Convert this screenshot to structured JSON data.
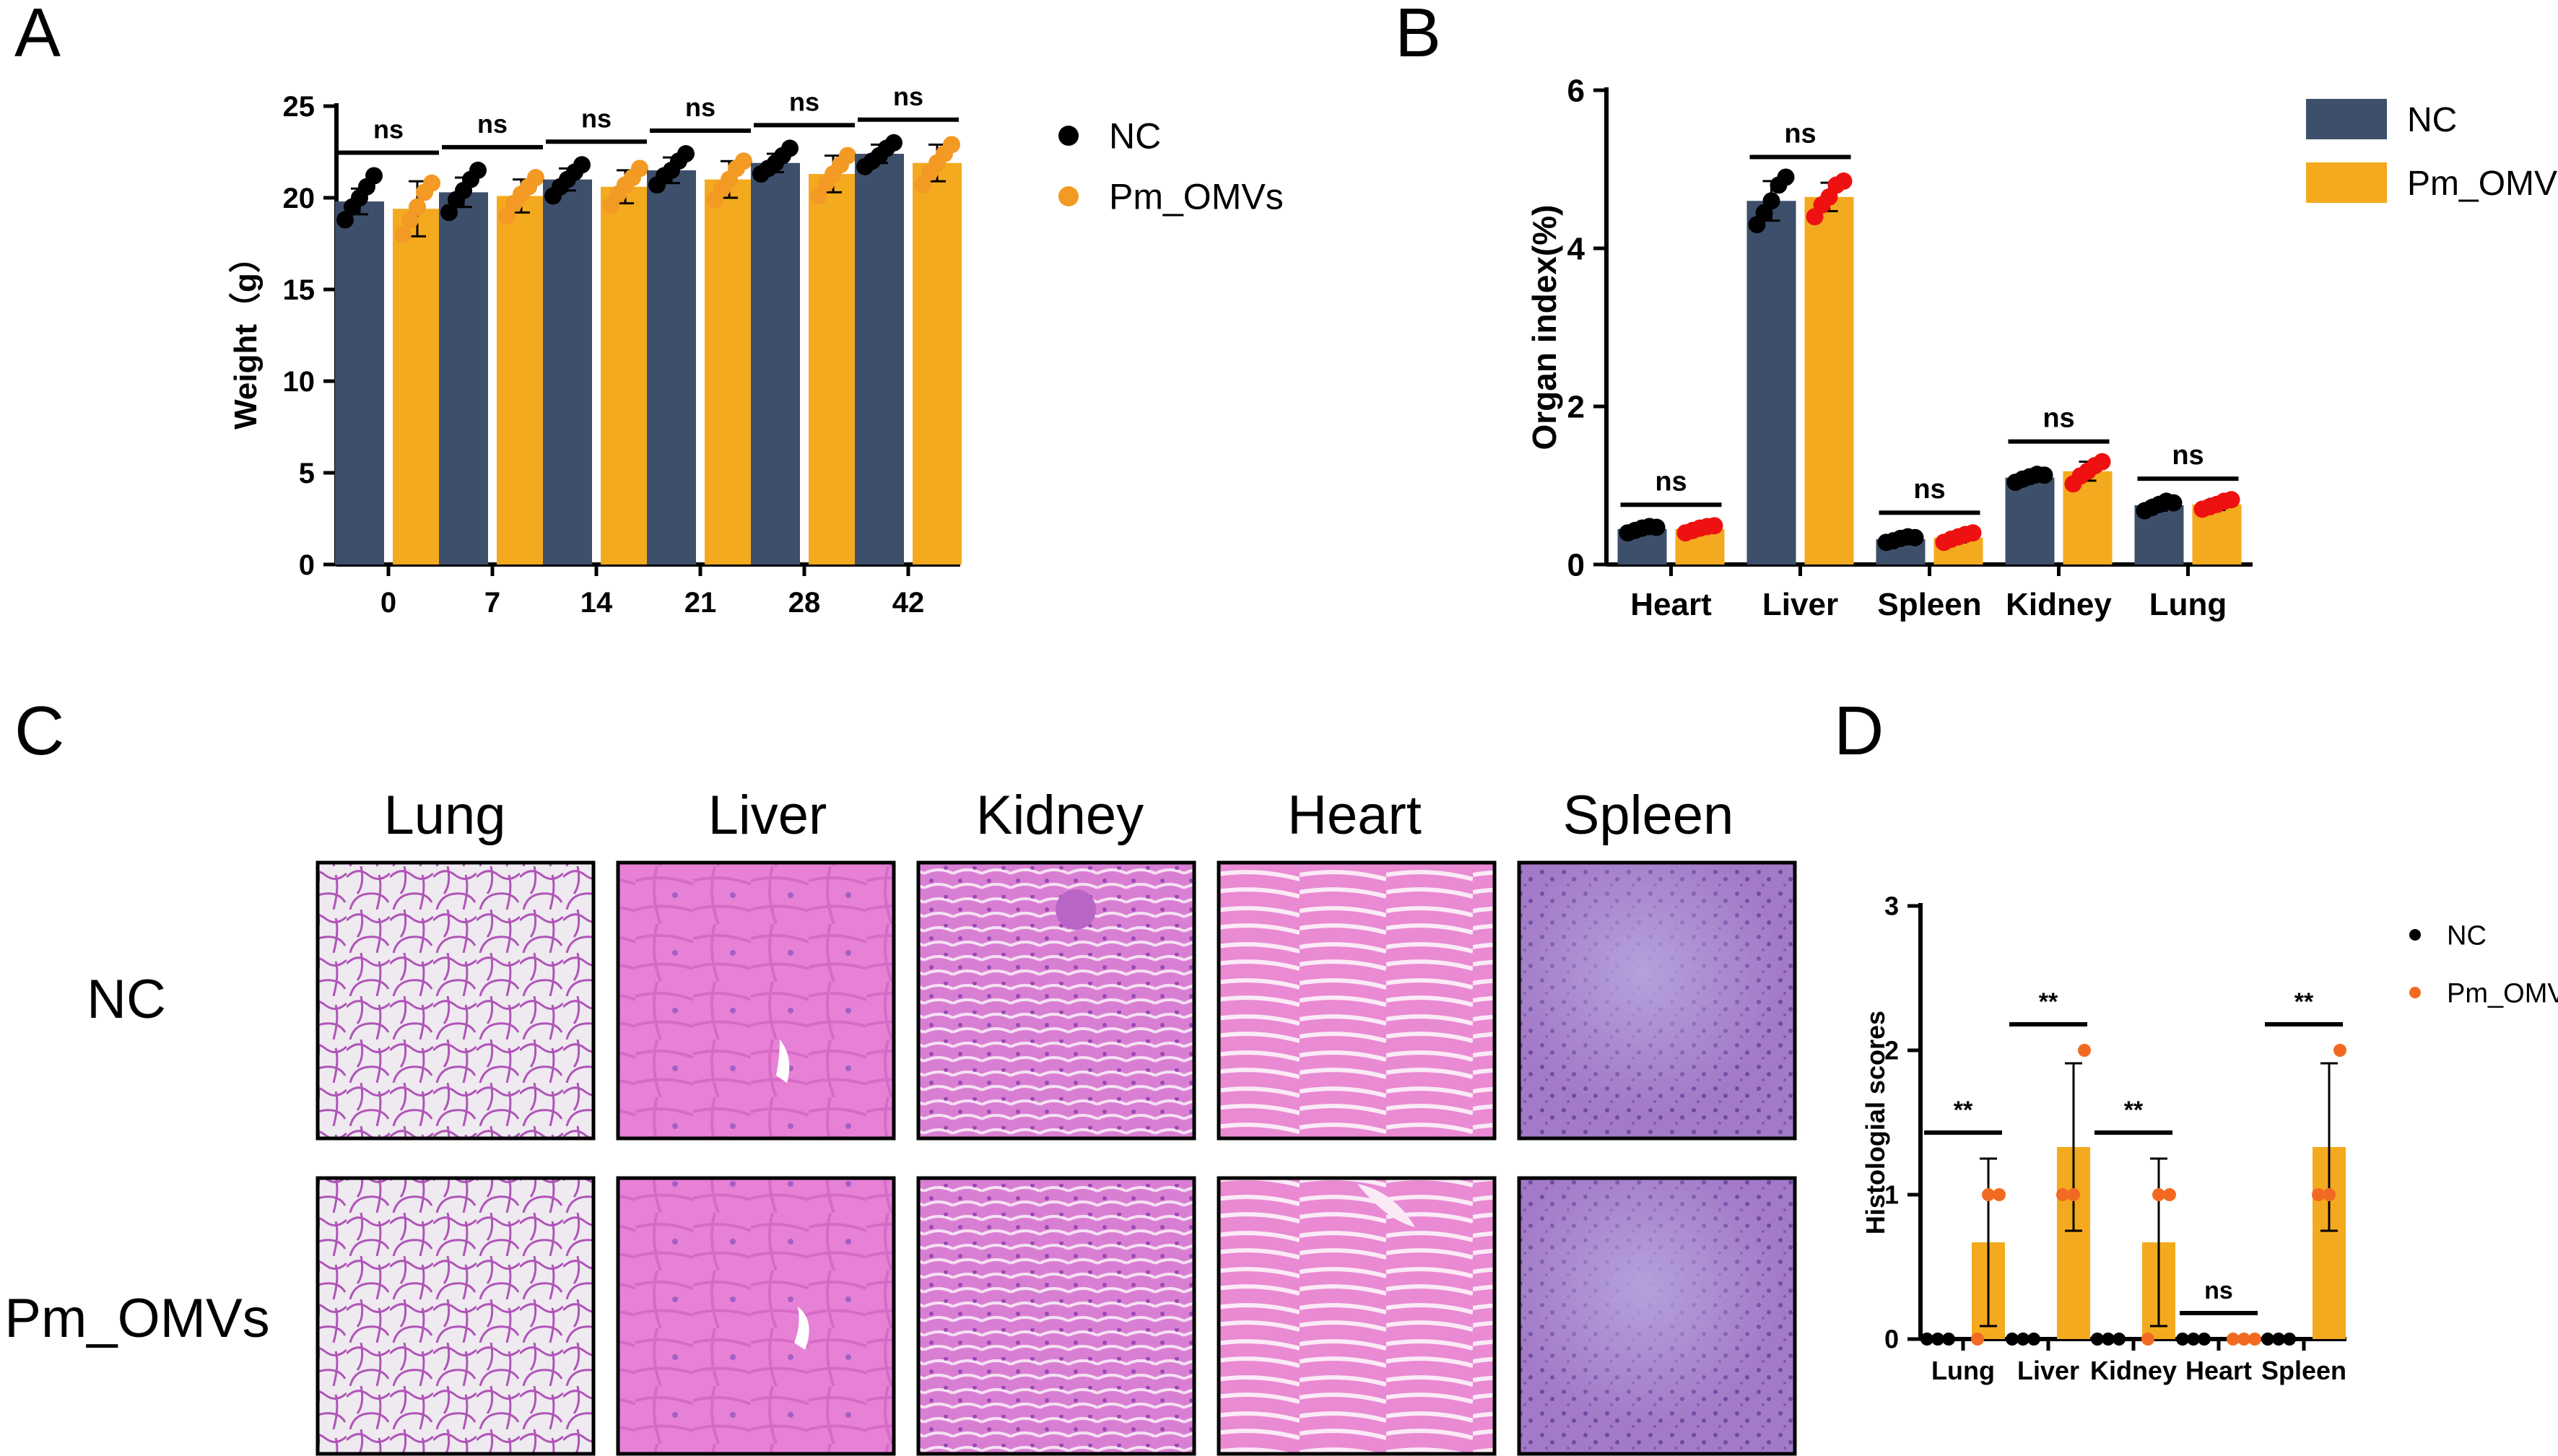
{
  "colors": {
    "nc_bar": "#3d4f6b",
    "pm_bar": "#f4aa1e",
    "nc_dot": "#000000",
    "pm_dot_a": "#f39a24",
    "pm_dot_b": "#ee1111",
    "pm_dot_d": "#f26a21",
    "legend_nc_text_a": "#243a6b",
    "legend_nc_text_d": "#243a6b"
  },
  "panels": {
    "A": {
      "letter": "A"
    },
    "B": {
      "letter": "B"
    },
    "C": {
      "letter": "C"
    },
    "D": {
      "letter": "D"
    }
  },
  "chart_data": [
    {
      "panel": "A",
      "type": "bar",
      "ylabel": "Weight（g）",
      "xlabel": "",
      "ylim": [
        0,
        25
      ],
      "yticks": [
        0,
        5,
        10,
        15,
        20,
        25
      ],
      "categories": [
        "0",
        "7",
        "14",
        "21",
        "28",
        "42"
      ],
      "legend": {
        "placement": "top-right",
        "marker": "dot"
      },
      "series": [
        {
          "name": "NC",
          "values": [
            19.8,
            20.3,
            21.0,
            21.5,
            21.9,
            22.4
          ],
          "errors": [
            0.7,
            0.8,
            0.6,
            0.7,
            0.5,
            0.5
          ],
          "points": [
            [
              18.8,
              19.5,
              20.0,
              20.6,
              21.2
            ],
            [
              19.2,
              19.9,
              20.4,
              21.0,
              21.5
            ],
            [
              20.1,
              20.6,
              21.0,
              21.4,
              21.8
            ],
            [
              20.7,
              21.2,
              21.5,
              22.0,
              22.4
            ],
            [
              21.3,
              21.6,
              21.9,
              22.3,
              22.7
            ],
            [
              21.7,
              22.0,
              22.3,
              22.7,
              23.0
            ]
          ]
        },
        {
          "name": "Pm_OMVs",
          "values": [
            19.4,
            20.1,
            20.6,
            21.0,
            21.3,
            21.9
          ],
          "errors": [
            1.5,
            0.9,
            0.9,
            1.0,
            1.0,
            1.0
          ],
          "points": [
            [
              18.0,
              18.8,
              19.5,
              20.3,
              20.8
            ],
            [
              19.0,
              19.7,
              20.2,
              20.6,
              21.1
            ],
            [
              19.6,
              20.2,
              20.7,
              21.1,
              21.6
            ],
            [
              19.9,
              20.5,
              21.0,
              21.6,
              22.0
            ],
            [
              20.1,
              20.8,
              21.3,
              21.8,
              22.3
            ],
            [
              20.7,
              21.4,
              21.9,
              22.4,
              22.9
            ]
          ]
        }
      ],
      "annotations": [
        "ns",
        "ns",
        "ns",
        "ns",
        "ns",
        "ns"
      ]
    },
    {
      "panel": "B",
      "type": "bar",
      "ylabel": "Organ index(%)",
      "xlabel": "",
      "ylim": [
        0,
        6
      ],
      "yticks": [
        0,
        2,
        4,
        6
      ],
      "categories": [
        "Heart",
        "Liver",
        "Spleen",
        "Kidney",
        "Lung"
      ],
      "legend": {
        "placement": "top-right",
        "marker": "square"
      },
      "series": [
        {
          "name": "NC",
          "values": [
            0.45,
            4.6,
            0.32,
            1.1,
            0.75
          ],
          "errors": [
            0.05,
            0.25,
            0.04,
            0.06,
            0.07
          ],
          "points": [
            [
              0.4,
              0.43,
              0.46,
              0.48,
              0.47
            ],
            [
              4.3,
              4.45,
              4.6,
              4.8,
              4.9
            ],
            [
              0.28,
              0.3,
              0.33,
              0.35,
              0.34
            ],
            [
              1.04,
              1.08,
              1.11,
              1.14,
              1.13
            ],
            [
              0.68,
              0.72,
              0.76,
              0.8,
              0.78
            ]
          ]
        },
        {
          "name": "Pm_OMVs",
          "values": [
            0.45,
            4.65,
            0.34,
            1.18,
            0.76
          ],
          "errors": [
            0.05,
            0.18,
            0.06,
            0.12,
            0.07
          ],
          "points": [
            [
              0.4,
              0.43,
              0.46,
              0.48,
              0.49
            ],
            [
              4.4,
              4.55,
              4.65,
              4.8,
              4.85
            ],
            [
              0.28,
              0.32,
              0.35,
              0.38,
              0.4
            ],
            [
              1.02,
              1.12,
              1.18,
              1.25,
              1.3
            ],
            [
              0.7,
              0.73,
              0.76,
              0.8,
              0.82
            ]
          ]
        }
      ],
      "annotations": [
        "ns",
        "ns",
        "ns",
        "ns",
        "ns"
      ]
    },
    {
      "panel": "D",
      "type": "bar",
      "ylabel": "Histologial scores",
      "xlabel": "",
      "ylim": [
        0,
        3
      ],
      "yticks": [
        0,
        1,
        2,
        3
      ],
      "categories": [
        "Lung",
        "Liver",
        "Kidney",
        "Heart",
        "Spleen"
      ],
      "legend": {
        "placement": "top-right",
        "marker": "dot"
      },
      "series": [
        {
          "name": "NC",
          "values": [
            0,
            0,
            0,
            0,
            0
          ],
          "errors": [
            0,
            0,
            0,
            0,
            0
          ],
          "points": [
            [
              0,
              0,
              0
            ],
            [
              0,
              0,
              0
            ],
            [
              0,
              0,
              0
            ],
            [
              0,
              0,
              0
            ],
            [
              0,
              0,
              0
            ]
          ]
        },
        {
          "name": "Pm_OMVs",
          "values": [
            0.67,
            1.33,
            0.67,
            0,
            1.33
          ],
          "errors": [
            0.58,
            0.58,
            0.58,
            0,
            0.58
          ],
          "points": [
            [
              0,
              1,
              1
            ],
            [
              1,
              1,
              2
            ],
            [
              0,
              1,
              1
            ],
            [
              0,
              0,
              0
            ],
            [
              1,
              1,
              2
            ]
          ]
        }
      ],
      "annotations": [
        "**",
        "**",
        "**",
        "ns",
        "**"
      ]
    }
  ],
  "histology": {
    "columns": [
      "Lung",
      "Liver",
      "Kidney",
      "Heart",
      "Spleen"
    ],
    "rows": [
      "NC",
      "Pm_OMVs"
    ]
  }
}
